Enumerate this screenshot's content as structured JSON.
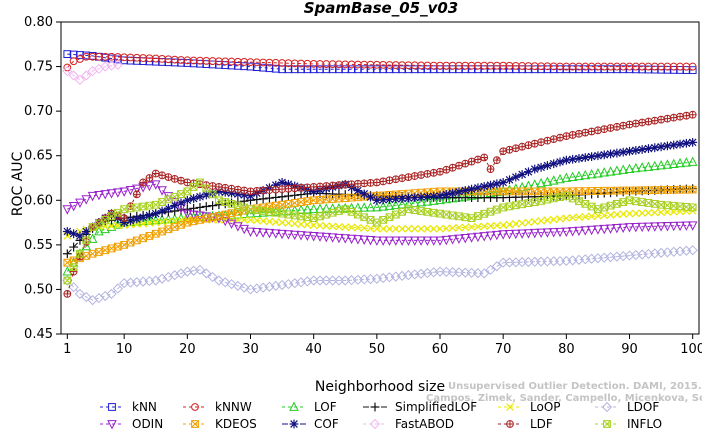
{
  "chart_data": {
    "type": "line",
    "title": "SpamBase_05_v03",
    "xlabel": "Neighborhood size",
    "ylabel": "ROC AUC",
    "xlim": [
      0,
      101
    ],
    "ylim": [
      0.45,
      0.8
    ],
    "xticks": [
      1,
      10,
      20,
      30,
      40,
      50,
      60,
      70,
      80,
      90,
      100
    ],
    "yticks": [
      "0.45",
      "0.50",
      "0.55",
      "0.60",
      "0.65",
      "0.70",
      "0.75",
      "0.80"
    ],
    "grid": false,
    "legend_position": "bottom",
    "watermark_lines": [
      "Unsupervised Outlier Detection. DAMI, 2015.",
      "Campos, Zimek, Sander, Campello, Micenkova, Schubert, Assent, Houle"
    ],
    "series": [
      {
        "name": "kNN",
        "color": "#1f1fd6",
        "marker": "square",
        "dash": "3,3",
        "x": [
          1,
          5,
          10,
          20,
          30,
          35,
          40,
          50,
          60,
          70,
          80,
          90,
          100
        ],
        "y": [
          0.764,
          0.762,
          0.757,
          0.754,
          0.75,
          0.747,
          0.747,
          0.747,
          0.747,
          0.747,
          0.747,
          0.747,
          0.746
        ]
      },
      {
        "name": "kNNW",
        "color": "#d62020",
        "marker": "circle",
        "dash": "3,3",
        "x": [
          1,
          2,
          4,
          8,
          15,
          20,
          30,
          40,
          50,
          60,
          70,
          80,
          90,
          100
        ],
        "y": [
          0.749,
          0.756,
          0.761,
          0.761,
          0.759,
          0.757,
          0.755,
          0.753,
          0.752,
          0.751,
          0.751,
          0.75,
          0.75,
          0.75
        ]
      },
      {
        "name": "LOF",
        "color": "#22cc22",
        "marker": "triangle-up",
        "dash": "3,3",
        "x": [
          1,
          3,
          6,
          10,
          20,
          30,
          40,
          50,
          60,
          70,
          80,
          90,
          100
        ],
        "y": [
          0.52,
          0.54,
          0.565,
          0.575,
          0.58,
          0.585,
          0.59,
          0.592,
          0.6,
          0.61,
          0.625,
          0.635,
          0.643
        ]
      },
      {
        "name": "SimplifiedLOF",
        "color": "#111111",
        "marker": "plus",
        "dash": "6,3",
        "x": [
          1,
          3,
          6,
          10,
          20,
          30,
          40,
          50,
          60,
          70,
          80,
          90,
          100
        ],
        "y": [
          0.54,
          0.555,
          0.575,
          0.58,
          0.59,
          0.6,
          0.608,
          0.605,
          0.603,
          0.603,
          0.605,
          0.61,
          0.613
        ]
      },
      {
        "name": "LoOP",
        "color": "#e8e800",
        "marker": "x",
        "dash": "3,3",
        "x": [
          1,
          5,
          10,
          20,
          30,
          40,
          50,
          60,
          70,
          80,
          90,
          100
        ],
        "y": [
          0.56,
          0.57,
          0.572,
          0.578,
          0.578,
          0.572,
          0.568,
          0.568,
          0.572,
          0.58,
          0.585,
          0.588
        ]
      },
      {
        "name": "LDOF",
        "color": "#b4b4e0",
        "marker": "diamond",
        "dash": "3,3",
        "x": [
          1,
          3,
          5,
          8,
          10,
          15,
          20,
          22,
          25,
          30,
          35,
          40,
          45,
          50,
          60,
          67,
          70,
          80,
          90,
          100
        ],
        "y": [
          0.51,
          0.495,
          0.488,
          0.495,
          0.507,
          0.51,
          0.52,
          0.522,
          0.51,
          0.5,
          0.505,
          0.51,
          0.51,
          0.512,
          0.52,
          0.518,
          0.53,
          0.532,
          0.538,
          0.544
        ]
      },
      {
        "name": "ODIN",
        "color": "#9922cc",
        "marker": "triangle-down",
        "dash": "3,3",
        "x": [
          1,
          5,
          10,
          15,
          20,
          25,
          30,
          40,
          50,
          60,
          70,
          80,
          90,
          100
        ],
        "y": [
          0.59,
          0.605,
          0.61,
          0.618,
          0.585,
          0.58,
          0.565,
          0.56,
          0.555,
          0.555,
          0.562,
          0.565,
          0.57,
          0.572
        ]
      },
      {
        "name": "KDEOS",
        "color": "#f0a000",
        "marker": "square-x",
        "dash": "3,3",
        "x": [
          1,
          5,
          10,
          20,
          30,
          40,
          50,
          60,
          70,
          80,
          90,
          100
        ],
        "y": [
          0.53,
          0.54,
          0.55,
          0.575,
          0.59,
          0.6,
          0.605,
          0.61,
          0.61,
          0.61,
          0.611,
          0.612
        ]
      },
      {
        "name": "COF",
        "color": "#101080",
        "marker": "asterisk",
        "dash": "6,3",
        "x": [
          1,
          3,
          5,
          8,
          10,
          15,
          20,
          25,
          30,
          35,
          40,
          45,
          50,
          60,
          70,
          75,
          80,
          85,
          90,
          95,
          100
        ],
        "y": [
          0.565,
          0.56,
          0.57,
          0.585,
          0.575,
          0.585,
          0.6,
          0.61,
          0.605,
          0.62,
          0.61,
          0.618,
          0.6,
          0.605,
          0.62,
          0.635,
          0.645,
          0.65,
          0.655,
          0.66,
          0.665
        ]
      },
      {
        "name": "FastABOD",
        "color": "#f2b4f2",
        "marker": "diamond",
        "dash": "3,3",
        "x": [
          1,
          3,
          5,
          7,
          9
        ],
        "y": [
          0.745,
          0.735,
          0.745,
          0.75,
          0.752
        ]
      },
      {
        "name": "LDF",
        "color": "#aa2222",
        "marker": "circle-plus",
        "dash": "3,3",
        "x": [
          1,
          2,
          5,
          8,
          10,
          13,
          15,
          20,
          30,
          40,
          50,
          60,
          67,
          68,
          70,
          80,
          90,
          100
        ],
        "y": [
          0.495,
          0.52,
          0.57,
          0.585,
          0.58,
          0.62,
          0.63,
          0.62,
          0.61,
          0.615,
          0.62,
          0.632,
          0.648,
          0.635,
          0.655,
          0.672,
          0.685,
          0.696
        ]
      },
      {
        "name": "INFLO",
        "color": "#a8d020",
        "marker": "square-x",
        "dash": "3,3",
        "x": [
          1,
          3,
          5,
          10,
          15,
          20,
          22,
          25,
          30,
          40,
          45,
          50,
          55,
          60,
          65,
          70,
          75,
          80,
          85,
          90,
          95,
          100
        ],
        "y": [
          0.51,
          0.54,
          0.57,
          0.59,
          0.595,
          0.61,
          0.62,
          0.6,
          0.59,
          0.58,
          0.59,
          0.575,
          0.59,
          0.585,
          0.58,
          0.592,
          0.598,
          0.605,
          0.59,
          0.6,
          0.595,
          0.592
        ]
      }
    ]
  }
}
